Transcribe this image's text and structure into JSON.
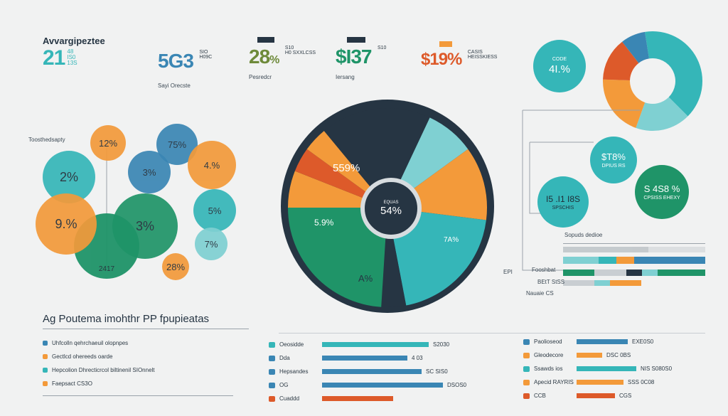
{
  "colors": {
    "teal": "#35b6b8",
    "orange": "#f39a3a",
    "dark": "#263543",
    "green": "#1f9468",
    "red": "#dd5a2a",
    "blue": "#3a86b4",
    "lightteal": "#7fd0d2",
    "gray": "#c9ced2"
  },
  "top_stats": [
    {
      "title": "Avvargipeztee",
      "value": "21",
      "suffix": "48\nIS0\n13S",
      "color": "#35b6b8"
    },
    {
      "value": "5G3",
      "sub1": "SIO\nH09C",
      "label": "Sayi Orecste",
      "color": "#3a86b4"
    },
    {
      "value": "28",
      "suffix": "%",
      "sub1": "S10\nH0 SXXLCSS",
      "label": "Pesredcr",
      "color": "#6e8a3a"
    },
    {
      "value": "$I37",
      "sub1": "S10",
      "label": "Iersang",
      "color": "#1f9468"
    },
    {
      "value": "$19%",
      "sub1": "CASIS\nHEISSKIESS",
      "color": "#dd5a2a"
    }
  ],
  "cluster_label": "Toosthedsapty",
  "bubbles": [
    {
      "text": "12%",
      "fill": "#f39a3a"
    },
    {
      "text": "75%",
      "fill": "#3a86b4"
    },
    {
      "text": "2%",
      "fill": "#35b6b8"
    },
    {
      "text": "3%",
      "fill": "#3a86b4"
    },
    {
      "text": "4.%",
      "fill": "#f39a3a"
    },
    {
      "text": "9.%",
      "fill": "#f39a3a"
    },
    {
      "text": "3%",
      "fill": "#1f9468"
    },
    {
      "text": "5%",
      "fill": "#35b6b8"
    },
    {
      "text": "7%",
      "fill": "#7fd0d2"
    },
    {
      "text": "28%",
      "fill": "#f39a3a"
    },
    {
      "text": "2417",
      "fill": "#1f9468"
    }
  ],
  "donut_small_top": {
    "label": "CODE",
    "value": "4I.%"
  },
  "mini_bubbles": [
    {
      "value": "$T8%",
      "sub": "DPIUS RS",
      "fill": "#35b6b8"
    },
    {
      "value": "S 4S8 %",
      "sub": "CPSISS EHEXY",
      "fill": "#1f9468"
    },
    {
      "value": "I5 .I1 I8S",
      "sub": "SPSCHIS",
      "fill": "#35b6b8"
    }
  ],
  "chart_data": [
    {
      "type": "pie",
      "title": "",
      "labels": [
        "559%",
        "5.9%",
        "A%",
        "7A%",
        "54%"
      ],
      "center_label": "54%",
      "center_sub": "EQUAS",
      "slices": [
        {
          "value": 18,
          "color": "#263543"
        },
        {
          "value": 8,
          "color": "#7fd0d2"
        },
        {
          "value": 12,
          "color": "#f39a3a"
        },
        {
          "value": 20,
          "color": "#35b6b8"
        },
        {
          "value": 4,
          "color": "#263543"
        },
        {
          "value": 24,
          "color": "#1f9468"
        },
        {
          "value": 6,
          "color": "#f39a3a"
        },
        {
          "value": 4,
          "color": "#dd5a2a"
        },
        {
          "value": 4,
          "color": "#f39a3a"
        }
      ]
    },
    {
      "type": "pie",
      "title": "",
      "slices": [
        {
          "value": 40,
          "color": "#35b6b8"
        },
        {
          "value": 18,
          "color": "#7fd0d2"
        },
        {
          "value": 20,
          "color": "#f39a3a"
        },
        {
          "value": 14,
          "color": "#dd5a2a"
        },
        {
          "value": 8,
          "color": "#3a86b4"
        }
      ]
    },
    {
      "type": "bar",
      "title": "Ag Poutema imohthr PP fpupieatas",
      "legend": [
        {
          "label": "Uhfcolln qehrchaeuil olopnpes",
          "color": "#3a86b4"
        },
        {
          "label": "Gectlcd ohereeds oarde",
          "color": "#f39a3a"
        },
        {
          "label": "Hepcolion Dhrecticrcol biltinenil SIOnnelt",
          "color": "#35b6b8"
        },
        {
          "label": "Faepsact CS3O",
          "color": "#f39a3a"
        }
      ],
      "rows": [
        {
          "label": "Oeosidde",
          "value": 0.75,
          "value_label": "S2030",
          "color": "#35b6b8"
        },
        {
          "label": "Dda",
          "value": 0.6,
          "value_label": "4 03",
          "color": "#3a86b4"
        },
        {
          "label": "Hepsandes",
          "value": 0.7,
          "value_label": "SC SIS0",
          "color": "#3a86b4"
        },
        {
          "label": "OG",
          "value": 0.85,
          "value_label": "DSOS0",
          "color": "#3a86b4"
        },
        {
          "label": "Cuaddd",
          "value": 0.5,
          "value_label": "",
          "color": "#dd5a2a"
        }
      ]
    },
    {
      "type": "bar",
      "title": "",
      "rows": [
        {
          "label": "Paolioseod",
          "value": 0.6,
          "value_label": "EXE0S0",
          "color": "#3a86b4"
        },
        {
          "label": "Gleodecore",
          "value": 0.3,
          "value_label": "DSC 0BS",
          "color": "#f39a3a"
        },
        {
          "label": "Ssawds ios",
          "value": 0.7,
          "value_label": "NIS S080S0",
          "color": "#35b6b8"
        },
        {
          "label": "Apecid RAYRIS",
          "value": 0.55,
          "value_label": "SSS 0C08",
          "color": "#f39a3a"
        },
        {
          "label": "CCB",
          "value": 0.45,
          "value_label": "CGS",
          "color": "#dd5a2a"
        }
      ]
    }
  ],
  "right_table": {
    "header": "Sopuds dedioe",
    "rows": [
      {
        "label": "Fooshbat",
        "value": "EPI"
      },
      {
        "label": "BEtT StSS",
        "value": ""
      },
      {
        "label": "Nauaie CS",
        "value": ""
      }
    ]
  }
}
